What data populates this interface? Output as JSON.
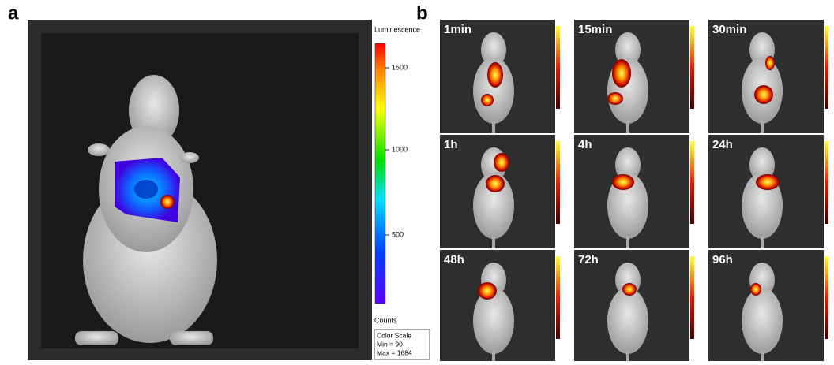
{
  "panel_a": {
    "label": "a",
    "colorbar": {
      "title": "Luminescence",
      "ticks": [
        "1500",
        "1000",
        "500"
      ],
      "unit": "Counts"
    },
    "color_scale": {
      "title": "Color Scale",
      "min": "Min = 90",
      "max": "Max = 1684"
    }
  },
  "panel_b": {
    "label": "b",
    "panels": [
      "1min",
      "15min",
      "30min",
      "1h",
      "4h",
      "24h",
      "48h",
      "72h",
      "96h"
    ]
  }
}
